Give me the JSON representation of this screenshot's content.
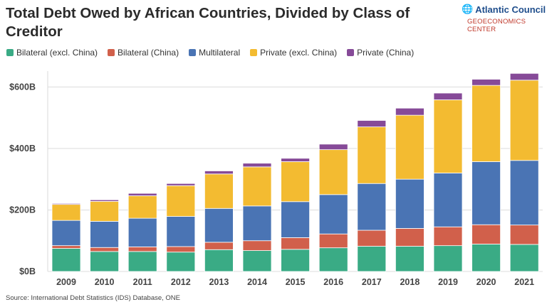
{
  "chart_data": {
    "type": "bar",
    "stacked": true,
    "title": "Total Debt Owed by African Countries, Divided by Class of Creditor",
    "categories": [
      "2009",
      "2010",
      "2011",
      "2012",
      "2013",
      "2014",
      "2015",
      "2016",
      "2017",
      "2018",
      "2019",
      "2020",
      "2021"
    ],
    "series": [
      {
        "name": "Bilateral (excl. China)",
        "color": "#3aab85",
        "values": [
          75,
          65,
          65,
          63,
          71,
          68,
          72,
          77,
          82,
          82,
          84,
          89,
          88
        ]
      },
      {
        "name": "Bilateral (China)",
        "color": "#d1604b",
        "values": [
          9,
          13,
          15,
          18,
          24,
          32,
          38,
          45,
          52,
          58,
          61,
          63,
          63
        ]
      },
      {
        "name": "Multilateral",
        "color": "#4a74b4",
        "values": [
          82,
          85,
          93,
          98,
          110,
          113,
          117,
          128,
          152,
          160,
          175,
          205,
          210
        ]
      },
      {
        "name": "Private (excl. China)",
        "color": "#f3bb31",
        "values": [
          52,
          65,
          73,
          100,
          112,
          127,
          130,
          146,
          184,
          208,
          238,
          248,
          261
        ]
      },
      {
        "name": "Private (China)",
        "color": "#864a98",
        "values": [
          3,
          5,
          8,
          7,
          10,
          12,
          11,
          18,
          21,
          23,
          22,
          20,
          22
        ]
      }
    ],
    "ylim": [
      0,
      650
    ],
    "yticks": [
      0,
      200,
      400,
      600
    ],
    "ytick_labels": [
      "$0B",
      "$200B",
      "$400B",
      "$600B"
    ],
    "xlabel": "",
    "ylabel": "",
    "grid": true,
    "legend_position": "top-left"
  },
  "logo": {
    "name": "Atlantic Council",
    "sub": "GEOECONOMICS CENTER"
  },
  "source": "Source: International Debt Statistics (IDS) Database, ONE"
}
